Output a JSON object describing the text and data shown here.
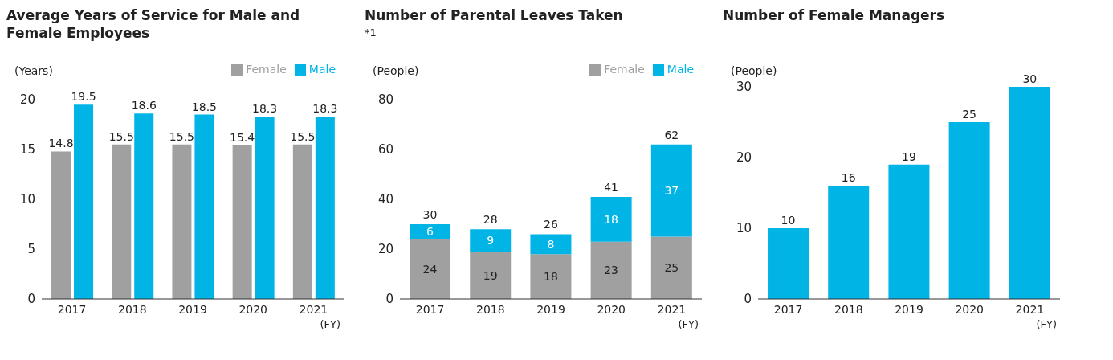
{
  "chart_data": [
    {
      "type": "bar",
      "title": "Average Years of Service for Male and Female Employees",
      "ylabel": "(Years)",
      "xlabel": "(FY)",
      "categories": [
        "2017",
        "2018",
        "2019",
        "2020",
        "2021"
      ],
      "series": [
        {
          "name": "Female",
          "color": "#a0a0a0",
          "values": [
            14.8,
            15.5,
            15.5,
            15.4,
            15.5
          ]
        },
        {
          "name": "Male",
          "color": "#00b4e6",
          "values": [
            19.5,
            18.6,
            18.5,
            18.3,
            18.3
          ]
        }
      ],
      "ylim": [
        0,
        20
      ],
      "yticks": [
        0,
        5,
        10,
        15,
        20
      ],
      "grid": false,
      "legend": "top right",
      "data_labels": true
    },
    {
      "type": "bar",
      "title": "Number of Parental Leaves Taken",
      "subtitle": "*1",
      "ylabel": "(People)",
      "xlabel": "(FY)",
      "categories": [
        "2017",
        "2018",
        "2019",
        "2020",
        "2021"
      ],
      "stacked": true,
      "series": [
        {
          "name": "Female",
          "color": "#a0a0a0",
          "values": [
            24,
            19,
            18,
            23,
            25
          ]
        },
        {
          "name": "Male",
          "color": "#00b4e6",
          "values": [
            6,
            9,
            8,
            18,
            37
          ]
        }
      ],
      "totals": [
        "30",
        "28",
        "26",
        "41",
        "62"
      ],
      "ylim": [
        0,
        80
      ],
      "yticks": [
        0,
        20,
        40,
        60,
        80
      ],
      "grid": false,
      "legend": "top right",
      "data_labels": true
    },
    {
      "type": "bar",
      "title": "Number of Female Managers",
      "ylabel": "(People)",
      "xlabel": "(FY)",
      "categories": [
        "2017",
        "2018",
        "2019",
        "2020",
        "2021"
      ],
      "values": [
        10,
        16,
        19,
        25,
        30
      ],
      "color": "#00b4e6",
      "ylim": [
        0,
        30
      ],
      "yticks": [
        0,
        10,
        20,
        30
      ],
      "grid": false,
      "data_labels": true
    }
  ]
}
